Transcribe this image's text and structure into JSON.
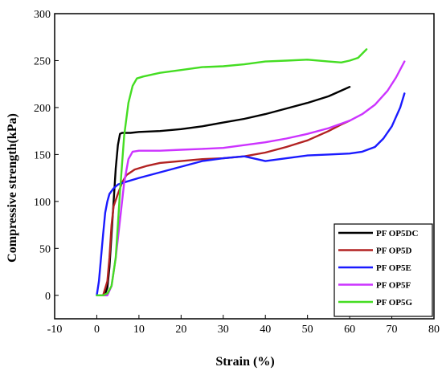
{
  "chart_data": {
    "type": "line",
    "title": "",
    "xlabel": "Strain (%)",
    "ylabel": "Compressive strength(kPa)",
    "xlim": [
      -10,
      80
    ],
    "ylim": [
      -25,
      300
    ],
    "xticks": [
      -10,
      0,
      10,
      20,
      30,
      40,
      50,
      60,
      70,
      80
    ],
    "yticks": [
      0,
      50,
      100,
      150,
      200,
      250,
      300
    ],
    "grid": false,
    "legend_position": "bottom-right",
    "series": [
      {
        "name": "PF OP5DC",
        "color": "#000000",
        "points": [
          [
            0.5,
            0
          ],
          [
            1.5,
            0
          ],
          [
            2,
            2
          ],
          [
            2.5,
            8
          ],
          [
            3,
            30
          ],
          [
            3.5,
            65
          ],
          [
            4,
            100
          ],
          [
            4.5,
            135
          ],
          [
            5,
            160
          ],
          [
            5.5,
            172
          ],
          [
            6,
            173
          ],
          [
            8,
            173
          ],
          [
            10,
            174
          ],
          [
            15,
            175
          ],
          [
            20,
            177
          ],
          [
            25,
            180
          ],
          [
            30,
            184
          ],
          [
            35,
            188
          ],
          [
            40,
            193
          ],
          [
            45,
            199
          ],
          [
            50,
            205
          ],
          [
            55,
            212
          ],
          [
            58,
            218
          ],
          [
            60,
            222
          ]
        ]
      },
      {
        "name": "PF OP5D",
        "color": "#b22222",
        "points": [
          [
            0.5,
            0
          ],
          [
            1.5,
            0
          ],
          [
            2.5,
            15
          ],
          [
            3,
            40
          ],
          [
            3.5,
            75
          ],
          [
            4,
            95
          ],
          [
            5,
            108
          ],
          [
            6,
            120
          ],
          [
            7,
            128
          ],
          [
            9,
            134
          ],
          [
            12,
            138
          ],
          [
            15,
            141
          ],
          [
            20,
            143
          ],
          [
            25,
            145
          ],
          [
            30,
            146
          ],
          [
            35,
            148
          ],
          [
            40,
            152
          ],
          [
            45,
            158
          ],
          [
            50,
            165
          ],
          [
            55,
            175
          ],
          [
            58,
            182
          ],
          [
            60,
            186
          ]
        ]
      },
      {
        "name": "PF OP5E",
        "color": "#1a1aff",
        "points": [
          [
            0,
            0
          ],
          [
            0.5,
            15
          ],
          [
            1,
            40
          ],
          [
            1.5,
            65
          ],
          [
            2,
            88
          ],
          [
            2.5,
            100
          ],
          [
            3,
            108
          ],
          [
            4,
            114
          ],
          [
            5,
            118
          ],
          [
            7,
            121
          ],
          [
            10,
            125
          ],
          [
            15,
            131
          ],
          [
            20,
            137
          ],
          [
            25,
            143
          ],
          [
            30,
            146
          ],
          [
            35,
            148
          ],
          [
            38,
            145
          ],
          [
            40,
            143
          ],
          [
            45,
            146
          ],
          [
            50,
            149
          ],
          [
            55,
            150
          ],
          [
            60,
            151
          ],
          [
            63,
            153
          ],
          [
            66,
            158
          ],
          [
            68,
            167
          ],
          [
            70,
            180
          ],
          [
            72,
            200
          ],
          [
            73,
            215
          ]
        ]
      },
      {
        "name": "PF OP5F",
        "color": "#cc33ff",
        "points": [
          [
            0.5,
            0
          ],
          [
            2.5,
            0
          ],
          [
            3.5,
            10
          ],
          [
            4.5,
            40
          ],
          [
            5.5,
            80
          ],
          [
            6.5,
            120
          ],
          [
            7.5,
            145
          ],
          [
            8.5,
            153
          ],
          [
            10,
            154
          ],
          [
            15,
            154
          ],
          [
            20,
            155
          ],
          [
            25,
            156
          ],
          [
            30,
            157
          ],
          [
            35,
            160
          ],
          [
            40,
            163
          ],
          [
            45,
            167
          ],
          [
            50,
            172
          ],
          [
            55,
            178
          ],
          [
            60,
            186
          ],
          [
            63,
            193
          ],
          [
            66,
            203
          ],
          [
            69,
            218
          ],
          [
            71,
            232
          ],
          [
            73,
            249
          ]
        ]
      },
      {
        "name": "PF OP5G",
        "color": "#44dd22",
        "points": [
          [
            0,
            0
          ],
          [
            1.5,
            0
          ],
          [
            2.5,
            2
          ],
          [
            3.5,
            10
          ],
          [
            4.5,
            40
          ],
          [
            5.5,
            110
          ],
          [
            6.5,
            170
          ],
          [
            7.5,
            205
          ],
          [
            8.5,
            223
          ],
          [
            9.5,
            231
          ],
          [
            11,
            233
          ],
          [
            15,
            237
          ],
          [
            20,
            240
          ],
          [
            25,
            243
          ],
          [
            30,
            244
          ],
          [
            35,
            246
          ],
          [
            40,
            249
          ],
          [
            45,
            250
          ],
          [
            50,
            251
          ],
          [
            55,
            249
          ],
          [
            58,
            248
          ],
          [
            60,
            250
          ],
          [
            62,
            253
          ],
          [
            64,
            262
          ]
        ]
      }
    ]
  }
}
